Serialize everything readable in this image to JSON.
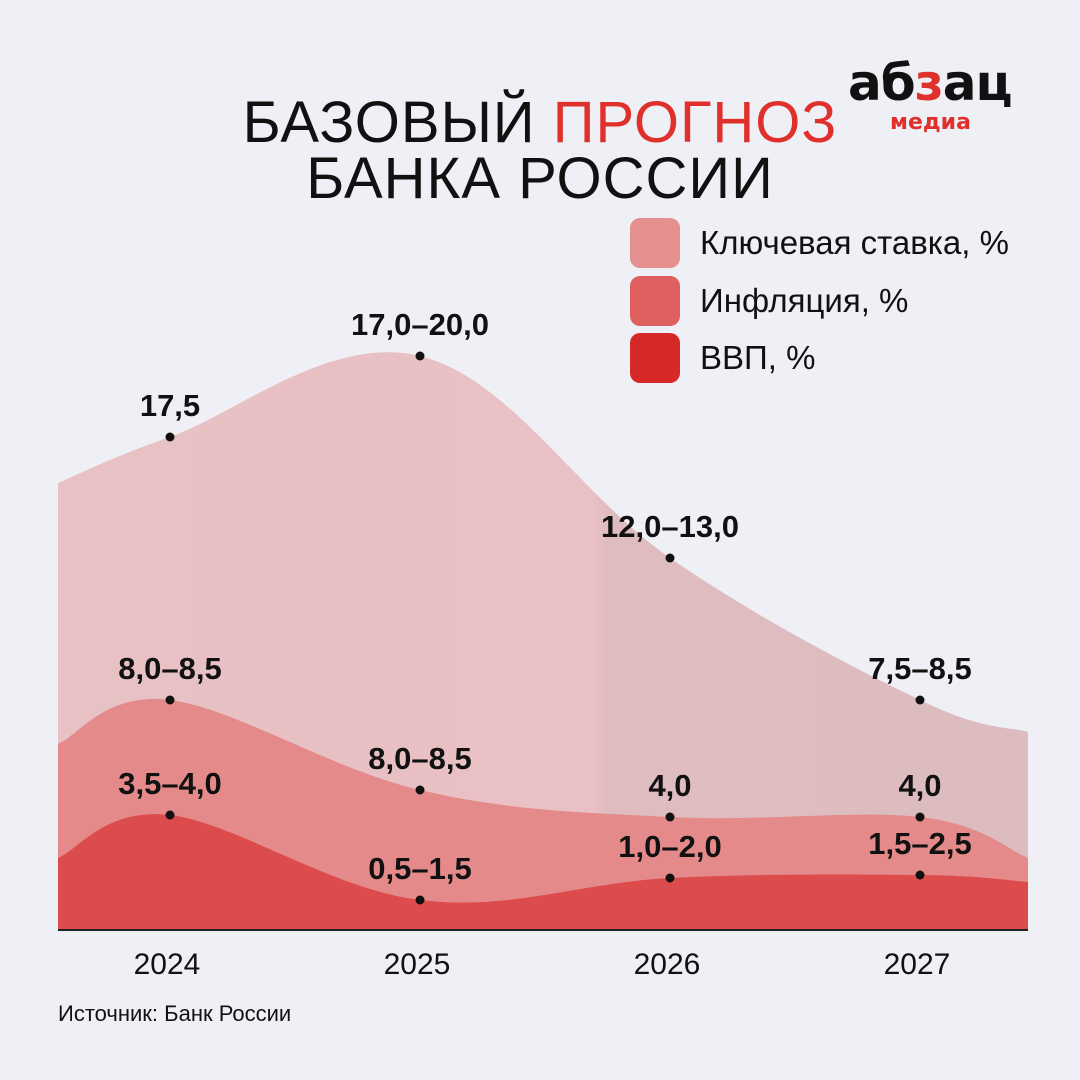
{
  "title": {
    "line1_part1": "БАЗОВЫЙ",
    "line1_part2": "ПРОГНОЗ",
    "line2": "БАНКА РОССИИ"
  },
  "logo": {
    "word_part1": "аб",
    "word_part2": "з",
    "word_part3": "ац",
    "sub": "медиа"
  },
  "source": "Источник: Банк России",
  "colors": {
    "background": "#eff0f5",
    "accent": "#e0302b",
    "key_rate": "#e8c2c5",
    "inflation": "#e48a8a",
    "gdp": "#dc4c4c"
  },
  "chart_data": {
    "type": "area",
    "title": "БАЗОВЫЙ ПРОГНОЗ БАНКА РОССИИ",
    "categories": [
      "2024",
      "2025",
      "2026",
      "2027"
    ],
    "legend_position": "top-right",
    "grid": false,
    "series": [
      {
        "name": "Ключевая ставка, %",
        "color": "#e8c2c5",
        "legend_color": "#e4908f",
        "labels": [
          "17,5",
          "17,0–20,0",
          "12,0–13,0",
          "7,5–8,5"
        ],
        "values": [
          17.5,
          18.5,
          12.5,
          8.0
        ]
      },
      {
        "name": "Инфляция, %",
        "color": "#e48a8a",
        "legend_color": "#df5f5f",
        "labels": [
          "8,0–8,5",
          "8,0–8,5",
          "4,0",
          "4,0"
        ],
        "values": [
          8.25,
          8.25,
          4.0,
          4.0
        ]
      },
      {
        "name": "ВВП, %",
        "color": "#dc4c4c",
        "legend_color": "#d72828",
        "labels": [
          "3,5–4,0",
          "0,5–1,5",
          "1,0–2,0",
          "1,5–2,5"
        ],
        "values": [
          3.75,
          1.0,
          1.5,
          2.0
        ]
      }
    ]
  }
}
